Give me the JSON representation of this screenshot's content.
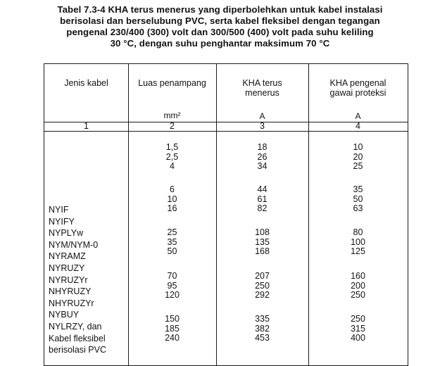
{
  "caption": {
    "line1": "Tabel  7.3-4  KHA terus menerus yang diperbolehkan untuk kabel instalasi",
    "line2": "berisolasi dan berselubung PVC, serta kabel fleksibel dengan tegangan",
    "line3": "pengenal 230/400 (300) volt dan 300/500 (400) volt pada suhu keliling",
    "line4": "30 °C, dengan suhu penghantar maksimum 70 °C"
  },
  "headers": {
    "col1": "Jenis kabel",
    "col2": "Luas penampang",
    "col3_line1": "KHA terus",
    "col3_line2": "menerus",
    "col4_line1": "KHA pengenal",
    "col4_line2": "gawai proteksi"
  },
  "units": {
    "col2": "mm²",
    "col3": "A",
    "col4": "A"
  },
  "col_numbers": [
    "1",
    "2",
    "3",
    "4"
  ],
  "cable_types": [
    "NYIF",
    "NYIFY",
    "NYPLYw",
    "NYM/NYM-0",
    "NYRAMZ",
    "NYRUZY",
    "NYRUZYr",
    "NHYRUZY",
    "NHYRUZYr",
    "NYBUY",
    "NYLRZY, dan",
    "Kabel fleksibel",
    "berisolasi PVC"
  ],
  "groups": [
    {
      "area": [
        "1,5",
        "2,5",
        "4"
      ],
      "kha": [
        "18",
        "26",
        "34"
      ],
      "prot": [
        "10",
        "20",
        "25"
      ]
    },
    {
      "area": [
        "6",
        "10",
        "16"
      ],
      "kha": [
        "44",
        "61",
        "82"
      ],
      "prot": [
        "35",
        "50",
        "63"
      ]
    },
    {
      "area": [
        "25",
        "35",
        "50"
      ],
      "kha": [
        "108",
        "135",
        "168"
      ],
      "prot": [
        "80",
        "100",
        "125"
      ]
    },
    {
      "area": [
        "70",
        "95",
        "120"
      ],
      "kha": [
        "207",
        "250",
        "292"
      ],
      "prot": [
        "160",
        "200",
        "250"
      ]
    },
    {
      "area": [
        "150",
        "185",
        "240"
      ],
      "kha": [
        "335",
        "382",
        "453"
      ],
      "prot": [
        "250",
        "315",
        "400"
      ]
    }
  ]
}
